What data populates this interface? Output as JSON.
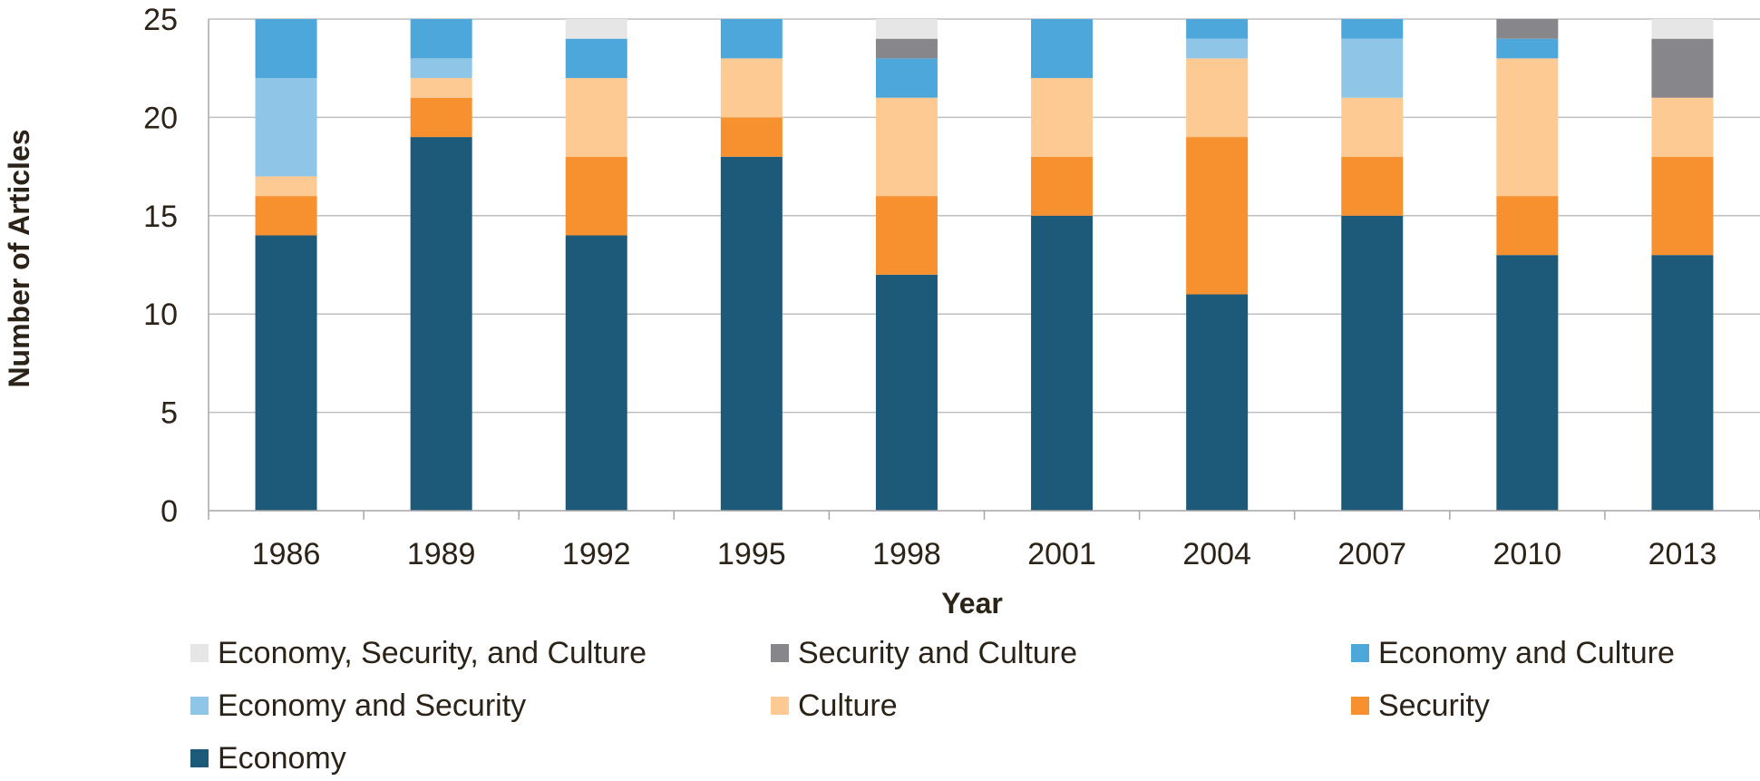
{
  "chart_data": {
    "type": "bar",
    "stacked": true,
    "xlabel": "Year",
    "ylabel": "Number of Articles",
    "ylim": [
      0,
      25
    ],
    "yticks": [
      0,
      5,
      10,
      15,
      20,
      25
    ],
    "grid": true,
    "legend_position": "bottom",
    "categories": [
      "1986",
      "1989",
      "1992",
      "1995",
      "1998",
      "2001",
      "2004",
      "2007",
      "2010",
      "2013"
    ],
    "series": [
      {
        "name": "Economy",
        "color": "#1d5a7a",
        "values": [
          14,
          19,
          14,
          18,
          12,
          15,
          11,
          15,
          13,
          13
        ]
      },
      {
        "name": "Security",
        "color": "#f7902f",
        "values": [
          2,
          2,
          4,
          2,
          4,
          3,
          8,
          3,
          3,
          5
        ]
      },
      {
        "name": "Culture",
        "color": "#fdca93",
        "values": [
          1,
          1,
          4,
          3,
          5,
          4,
          4,
          3,
          7,
          3
        ]
      },
      {
        "name": "Economy and Security",
        "color": "#8fc6e7",
        "values": [
          5,
          1,
          0,
          0,
          0,
          0,
          1,
          3,
          0,
          0
        ]
      },
      {
        "name": "Economy and Culture",
        "color": "#4ea7db",
        "values": [
          3,
          2,
          2,
          2,
          2,
          3,
          1,
          1,
          1,
          0
        ]
      },
      {
        "name": "Security and Culture",
        "color": "#87868a",
        "values": [
          0,
          0,
          0,
          0,
          1,
          0,
          0,
          0,
          1,
          3
        ]
      },
      {
        "name": "Economy, Security, and Culture",
        "color": "#e6e6e6",
        "values": [
          0,
          0,
          1,
          0,
          1,
          0,
          0,
          0,
          0,
          1
        ]
      }
    ],
    "legend_order": [
      6,
      5,
      4,
      3,
      2,
      1,
      0
    ]
  }
}
